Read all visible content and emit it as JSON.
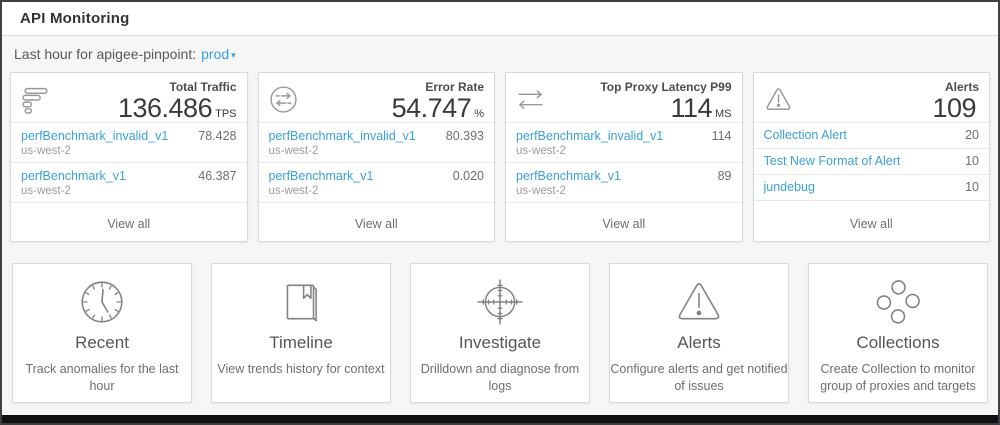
{
  "colors": {
    "link_blue": "#3AA0D8",
    "page_background": "#F5F6F6",
    "card_border": "#D9DADB",
    "bottom_bar": "#121212"
  },
  "header": {
    "title": "API Monitoring"
  },
  "scope_bar": {
    "label": "Last hour for apigee-pinpoint:",
    "environment": "prod"
  },
  "stat_cards": [
    {
      "title": "Total Traffic",
      "value": "136.486",
      "unit": "TPS",
      "icon": "traffic-bars-icon",
      "rows": [
        {
          "label": "perfBenchmark_invalid_v1",
          "region": "us-west-2",
          "value": "78.428"
        },
        {
          "label": "perfBenchmark_v1",
          "region": "us-west-2",
          "value": "46.387"
        }
      ],
      "footer_link": "View all"
    },
    {
      "title": "Error Rate",
      "value": "54.747",
      "unit": "%",
      "icon": "error-exchange-icon",
      "rows": [
        {
          "label": "perfBenchmark_invalid_v1",
          "region": "us-west-2",
          "value": "80.393"
        },
        {
          "label": "perfBenchmark_v1",
          "region": "us-west-2",
          "value": "0.020"
        }
      ],
      "footer_link": "View all"
    },
    {
      "title": "Top Proxy Latency P99",
      "value": "114",
      "unit": "MS",
      "icon": "latency-arrows-icon",
      "rows": [
        {
          "label": "perfBenchmark_invalid_v1",
          "region": "us-west-2",
          "value": "114"
        },
        {
          "label": "perfBenchmark_v1",
          "region": "us-west-2",
          "value": "89"
        }
      ],
      "footer_link": "View all"
    },
    {
      "title": "Alerts",
      "value": "109",
      "unit": "",
      "icon": "warning-triangle-icon",
      "rows": [
        {
          "label": "Collection Alert",
          "value": "20"
        },
        {
          "label": "Test New Format of Alert",
          "value": "10"
        },
        {
          "label": "jundebug",
          "value": "10"
        }
      ],
      "footer_link": "View all"
    }
  ],
  "nav_cards": [
    {
      "title": "Recent",
      "description": "Track anomalies for the last hour",
      "icon": "clock-icon"
    },
    {
      "title": "Timeline",
      "description": "View trends history for context",
      "icon": "book-icon"
    },
    {
      "title": "Investigate",
      "description": "Drilldown and diagnose from logs",
      "icon": "crosshair-icon"
    },
    {
      "title": "Alerts",
      "description": "Configure alerts and get notified of issues",
      "icon": "warning-triangle-icon"
    },
    {
      "title": "Collections",
      "description": "Create Collection to monitor group of proxies and targets",
      "icon": "collections-cluster-icon"
    }
  ]
}
